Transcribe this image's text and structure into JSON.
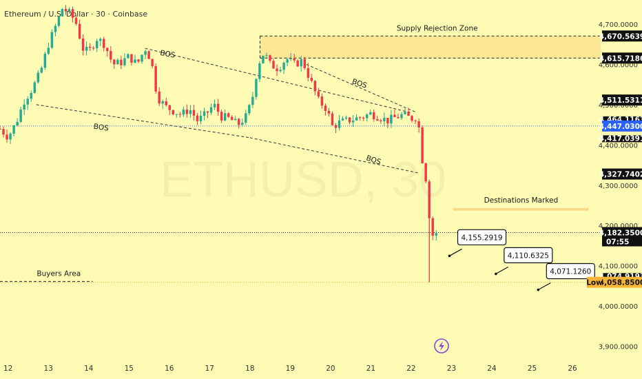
{
  "header": {
    "title": "Ethereum / U.S. Dollar · 30 · Coinbase"
  },
  "watermark": "ETHUSD, 30",
  "colors": {
    "background": "#fdfbb4",
    "up_candle": "#22ab94",
    "down_candle": "#f23645",
    "dashed_line": "#444444",
    "zone_fill": "#fbe08a",
    "last_price_label": "#2962ff",
    "low_label": "#f5b537",
    "destinations_band": "#fbd98a"
  },
  "chart_data": {
    "type": "candlestick",
    "symbol": "ETHUSD",
    "timeframe": "30",
    "exchange": "Coinbase",
    "ylim": [
      3870,
      4760
    ],
    "xlim": [
      11.8,
      26.7
    ],
    "x_ticks": [
      "12",
      "13",
      "14",
      "15",
      "16",
      "17",
      "18",
      "19",
      "20",
      "21",
      "22",
      "23",
      "24",
      "25",
      "26"
    ],
    "y_ticks": [
      "4,700.0000",
      "4,600.0000",
      "4,500.0000",
      "4,400.0000",
      "4,300.0000",
      "4,200.0000",
      "4,100.0000",
      "4,000.0000",
      "3,900.0000"
    ],
    "y_tick_values": [
      4700,
      4600,
      4500,
      4400,
      4300,
      4200,
      4100,
      4000,
      3900
    ],
    "price_path": [
      [
        11.8,
        4440
      ],
      [
        12.0,
        4420
      ],
      [
        12.2,
        4455
      ],
      [
        12.4,
        4510
      ],
      [
        12.6,
        4540
      ],
      [
        12.8,
        4580
      ],
      [
        13.0,
        4650
      ],
      [
        13.2,
        4700
      ],
      [
        13.35,
        4740
      ],
      [
        13.55,
        4725
      ],
      [
        13.7,
        4700
      ],
      [
        13.85,
        4640
      ],
      [
        14.0,
        4630
      ],
      [
        14.2,
        4665
      ],
      [
        14.4,
        4650
      ],
      [
        14.6,
        4600
      ],
      [
        14.8,
        4605
      ],
      [
        15.0,
        4620
      ],
      [
        15.2,
        4600
      ],
      [
        15.4,
        4640
      ],
      [
        15.55,
        4610
      ],
      [
        15.7,
        4520
      ],
      [
        15.9,
        4495
      ],
      [
        16.1,
        4485
      ],
      [
        16.3,
        4475
      ],
      [
        16.5,
        4490
      ],
      [
        16.7,
        4460
      ],
      [
        16.9,
        4475
      ],
      [
        17.1,
        4500
      ],
      [
        17.3,
        4470
      ],
      [
        17.5,
        4465
      ],
      [
        17.7,
        4450
      ],
      [
        17.9,
        4470
      ],
      [
        18.05,
        4510
      ],
      [
        18.2,
        4600
      ],
      [
        18.35,
        4630
      ],
      [
        18.5,
        4600
      ],
      [
        18.7,
        4590
      ],
      [
        18.9,
        4615
      ],
      [
        19.1,
        4600
      ],
      [
        19.3,
        4610
      ],
      [
        19.5,
        4560
      ],
      [
        19.7,
        4510
      ],
      [
        19.9,
        4490
      ],
      [
        20.05,
        4445
      ],
      [
        20.2,
        4455
      ],
      [
        20.4,
        4460
      ],
      [
        20.6,
        4465
      ],
      [
        20.8,
        4470
      ],
      [
        21.0,
        4478
      ],
      [
        21.2,
        4470
      ],
      [
        21.4,
        4460
      ],
      [
        21.6,
        4468
      ],
      [
        21.8,
        4475
      ],
      [
        22.0,
        4465
      ],
      [
        22.1,
        4470
      ],
      [
        22.2,
        4440
      ],
      [
        22.28,
        4360
      ],
      [
        22.36,
        4320
      ],
      [
        22.42,
        4250
      ],
      [
        22.48,
        4200
      ],
      [
        22.55,
        4170
      ],
      [
        22.62,
        4182
      ]
    ],
    "low_spike": {
      "x": 22.45,
      "value": 4058.85
    },
    "trend_lines": [
      {
        "label": "BOS",
        "from": [
          12.7,
          4500
        ],
        "to": [
          18.0,
          4418
        ]
      },
      {
        "label": "BOS",
        "from": [
          15.4,
          4640
        ],
        "to": [
          22.0,
          4480
        ]
      },
      {
        "label": "BOS",
        "from": [
          18.0,
          4418
        ],
        "to": [
          22.2,
          4330
        ]
      },
      {
        "label": "BOS",
        "from": [
          19.4,
          4600
        ],
        "to": [
          22.1,
          4482
        ]
      }
    ],
    "bos_labels": [
      {
        "text": "BOS",
        "x": 15.95,
        "y": 4620
      },
      {
        "text": "BOS",
        "x": 14.3,
        "y": 4438
      },
      {
        "text": "BOS",
        "x": 20.7,
        "y": 4547
      },
      {
        "text": "BOS",
        "x": 21.05,
        "y": 4357
      }
    ],
    "zones": [
      {
        "label": "Supply Rejection Zone",
        "from_x": 18.25,
        "to_x": 26.7,
        "low": 4615.7186,
        "high": 4670.5639
      }
    ],
    "buyers_area": {
      "label": "Buyers Area",
      "value": 4071.126,
      "from_x": 11.8,
      "to_x": 14.1
    },
    "destinations": {
      "label": "Destinations Marked",
      "band_from_x": 23.05,
      "band_to_x": 26.4,
      "band_value": 4240,
      "targets": [
        {
          "text": "4,155.2919",
          "anchor_x": 22.95,
          "anchor_y": 4155.2919
        },
        {
          "text": "4,110.6325",
          "anchor_x": 24.1,
          "anchor_y": 4110.6325
        },
        {
          "text": "4,071.1260",
          "anchor_x": 25.15,
          "anchor_y": 4071.126
        }
      ]
    },
    "reference_lines": [
      {
        "value": 4447.03,
        "style": "dotted",
        "color": "#2962ff"
      },
      {
        "value": 4182.35,
        "style": "dotted",
        "color": "#333333"
      },
      {
        "value": 4058.85,
        "style": "dotted",
        "color": "#f5b537"
      }
    ],
    "price_labels": [
      {
        "text": "4,670.5639",
        "value": 4670.5639,
        "style": "dark"
      },
      {
        "text": "4,615.7186",
        "value": 4615.7186,
        "style": "dark"
      },
      {
        "text": "4,511.5311",
        "value": 4511.5311,
        "style": "dark"
      },
      {
        "text": "4,464.1163",
        "value": 4464.1163,
        "style": "dark-partial"
      },
      {
        "text": "4,447.0300",
        "value": 4447.03,
        "style": "blue"
      },
      {
        "text": "4,417.0391",
        "value": 4417.0391,
        "style": "dark-partial"
      },
      {
        "text": "4,327.7402",
        "value": 4327.7402,
        "style": "dark"
      },
      {
        "text": "4,182.3500",
        "value": 4182.35,
        "style": "dark",
        "sub": "07:55"
      },
      {
        "text": "4,074.9193",
        "value": 4074.9193,
        "style": "dark-partial"
      },
      {
        "text": "4,058.8500",
        "value": 4058.85,
        "style": "orange",
        "tag": "Low"
      }
    ]
  }
}
